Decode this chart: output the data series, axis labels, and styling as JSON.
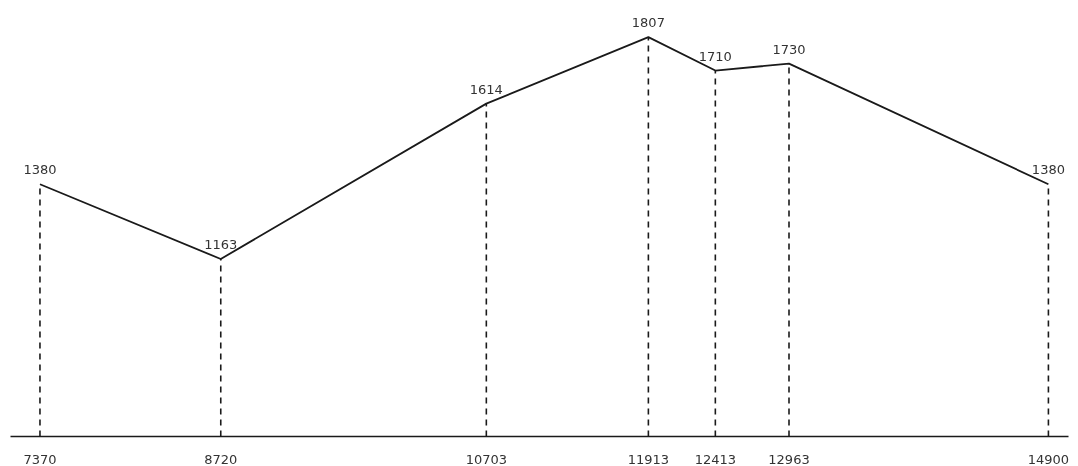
{
  "chart_data": {
    "type": "line",
    "x": [
      7370,
      8720,
      10703,
      11913,
      12413,
      12963,
      14900
    ],
    "xlim": [
      7150,
      15050
    ],
    "xticks": [
      7370,
      8720,
      10703,
      11913,
      12413,
      12963,
      14900
    ],
    "series": [
      {
        "color": "#1a1a1a",
        "values": [
          1380,
          1163,
          1614,
          1807,
          1710,
          1730,
          1380
        ]
      }
    ],
    "line_style": "solid",
    "data_labels": true,
    "grid": "x",
    "marker": "none"
  }
}
